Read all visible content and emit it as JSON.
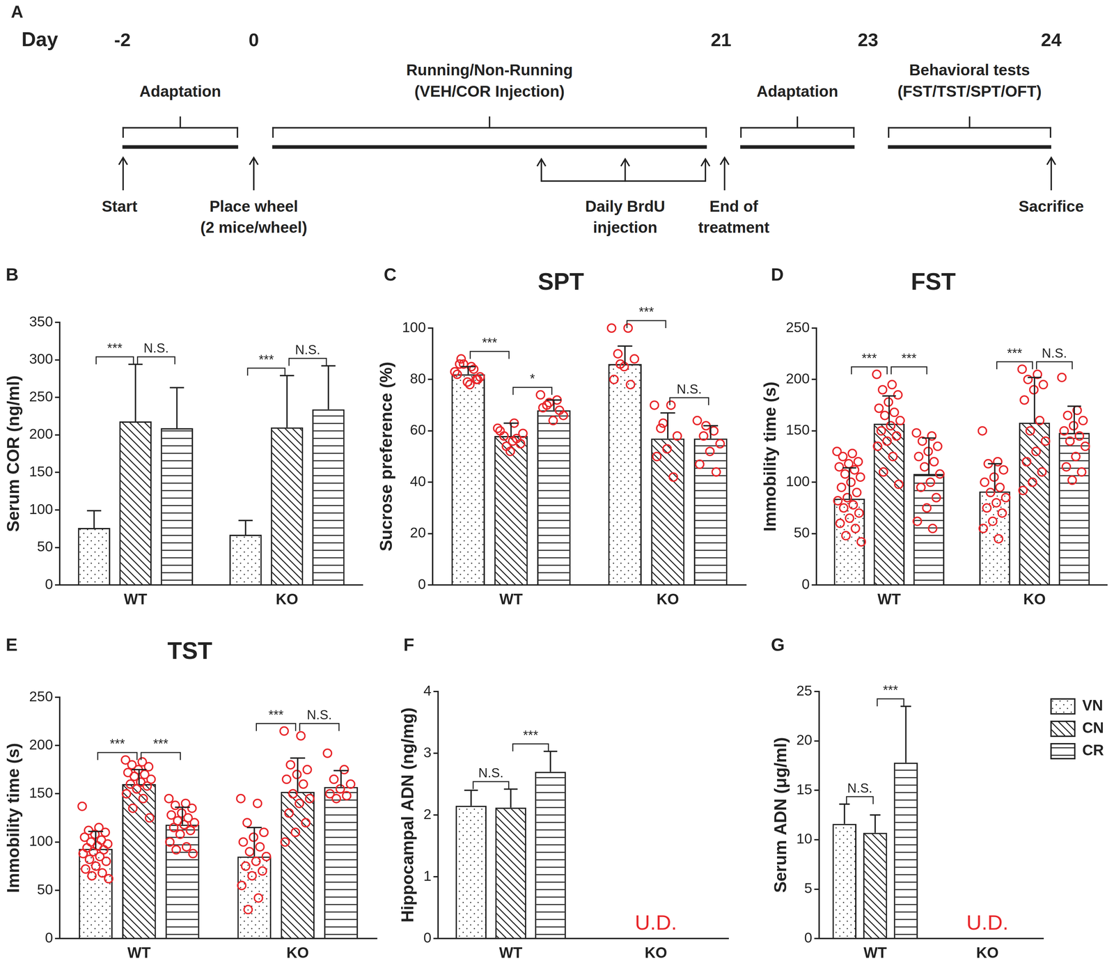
{
  "timeline": {
    "panel": "A",
    "day_label": "Day",
    "days": [
      -2,
      0,
      21,
      23,
      24
    ],
    "phases": [
      {
        "lines": [
          "Adaptation"
        ]
      },
      {
        "lines": [
          "Running/Non-Running",
          "(VEH/COR Injection)"
        ]
      },
      {
        "lines": [
          "Adaptation"
        ]
      },
      {
        "lines": [
          "Behavioral tests",
          "(FST/TST/SPT/OFT)"
        ]
      }
    ],
    "events": [
      {
        "lines": [
          "Start"
        ]
      },
      {
        "lines": [
          "Place wheel",
          "(2 mice/wheel)"
        ]
      },
      {
        "lines": [
          "Daily BrdU",
          "injection"
        ]
      },
      {
        "lines": [
          "End of",
          "treatment"
        ]
      },
      {
        "lines": [
          "Sacrifice"
        ]
      }
    ]
  },
  "chart_data": [
    {
      "panel": "B",
      "type": "bar",
      "y_label": "Serum COR (ng/ml)",
      "categories": [
        "WT",
        "KO"
      ],
      "ylim": [
        0,
        350
      ],
      "yticks": [
        0,
        50,
        100,
        150,
        200,
        250,
        300,
        350
      ],
      "grid": false,
      "series": [
        {
          "name": "VN",
          "values": [
            76,
            67
          ],
          "errors": [
            23,
            19
          ]
        },
        {
          "name": "CN",
          "values": [
            218,
            210
          ],
          "errors": [
            76,
            69
          ]
        },
        {
          "name": "CR",
          "values": [
            209,
            234
          ],
          "errors": [
            54,
            58
          ]
        }
      ],
      "significance": [
        {
          "category": "WT",
          "from": "VN",
          "to": "CN",
          "label": "***"
        },
        {
          "category": "WT",
          "from": "CN",
          "to": "CR",
          "label": "N.S."
        },
        {
          "category": "KO",
          "from": "VN",
          "to": "CN",
          "label": "***"
        },
        {
          "category": "KO",
          "from": "CN",
          "to": "CR",
          "label": "N.S."
        }
      ]
    },
    {
      "panel": "C",
      "type": "bar",
      "title": "SPT",
      "y_label": "Sucrose preference (%)",
      "categories": [
        "WT",
        "KO"
      ],
      "ylim": [
        0,
        100
      ],
      "yticks": [
        0,
        20,
        40,
        60,
        80,
        100
      ],
      "grid": false,
      "marker": "circle",
      "series": [
        {
          "name": "VN",
          "values": [
            82,
            86
          ],
          "errors": [
            3,
            7
          ],
          "points": [
            [
              83,
              85,
              88,
              80,
              79,
              82,
              84,
              86,
              81,
              78,
              86,
              80
            ],
            [
              100,
              100,
              90,
              88,
              85,
              80,
              78,
              86
            ]
          ]
        },
        {
          "name": "CN",
          "values": [
            58,
            57
          ],
          "errors": [
            5,
            10
          ],
          "points": [
            [
              61,
              63,
              58,
              55,
              52,
              60,
              57,
              54,
              59,
              56
            ],
            [
              70,
              70,
              61,
              58,
              53,
              50,
              42,
              63
            ]
          ]
        },
        {
          "name": "CR",
          "values": [
            68,
            57
          ],
          "errors": [
            4,
            5
          ],
          "points": [
            [
              74,
              72,
              70,
              66,
              64,
              69,
              68,
              71
            ],
            [
              64,
              60,
              58,
              55,
              52,
              47,
              44,
              62
            ]
          ]
        }
      ],
      "significance": [
        {
          "category": "WT",
          "from": "VN",
          "to": "CN",
          "label": "***"
        },
        {
          "category": "WT",
          "from": "CN",
          "to": "CR",
          "label": "*"
        },
        {
          "category": "KO",
          "from": "VN",
          "to": "CN",
          "label": "***"
        },
        {
          "category": "KO",
          "from": "CN",
          "to": "CR",
          "label": "N.S."
        }
      ]
    },
    {
      "panel": "D",
      "type": "bar",
      "title": "FST",
      "y_label": "Immobility time (s)",
      "categories": [
        "WT",
        "KO"
      ],
      "ylim": [
        0,
        250
      ],
      "yticks": [
        0,
        50,
        100,
        150,
        200,
        250
      ],
      "grid": false,
      "marker": "circle",
      "series": [
        {
          "name": "VN",
          "values": [
            84,
            91
          ],
          "errors": [
            30,
            27
          ],
          "points": [
            [
              130,
              128,
              125,
              120,
              118,
              115,
              112,
              108,
              105,
              100,
              95,
              90,
              85,
              82,
              78,
              75,
              70,
              65,
              60,
              55,
              48,
              42
            ],
            [
              150,
              120,
              118,
              112,
              105,
              100,
              95,
              90,
              85,
              80,
              75,
              70,
              62,
              55,
              45
            ]
          ]
        },
        {
          "name": "CN",
          "values": [
            157,
            158
          ],
          "errors": [
            27,
            44
          ],
          "points": [
            [
              205,
              195,
              190,
              185,
              178,
              172,
              168,
              165,
              160,
              155,
              150,
              145,
              140,
              135,
              125,
              110,
              98
            ],
            [
              210,
              205,
              200,
              195,
              190,
              180,
              160,
              150,
              140,
              130,
              120,
              110,
              100,
              92
            ]
          ]
        },
        {
          "name": "CR",
          "values": [
            108,
            148
          ],
          "errors": [
            35,
            26
          ],
          "points": [
            [
              148,
              145,
              140,
              135,
              130,
              125,
              120,
              115,
              108,
              100,
              95,
              85,
              75,
              62,
              55
            ],
            [
              202,
              170,
              165,
              160,
              155,
              150,
              145,
              140,
              135,
              125,
              115,
              110,
              102
            ]
          ]
        }
      ],
      "significance": [
        {
          "category": "WT",
          "from": "VN",
          "to": "CN",
          "label": "***"
        },
        {
          "category": "WT",
          "from": "CN",
          "to": "CR",
          "label": "***"
        },
        {
          "category": "KO",
          "from": "VN",
          "to": "CN",
          "label": "***"
        },
        {
          "category": "KO",
          "from": "CN",
          "to": "CR",
          "label": "N.S."
        }
      ]
    },
    {
      "panel": "E",
      "type": "bar",
      "title": "TST",
      "y_label": "Immobility time (s)",
      "categories": [
        "WT",
        "KO"
      ],
      "ylim": [
        0,
        250
      ],
      "yticks": [
        0,
        50,
        100,
        150,
        200,
        250
      ],
      "grid": false,
      "marker": "circle",
      "series": [
        {
          "name": "VN",
          "values": [
            93,
            85
          ],
          "errors": [
            18,
            30
          ],
          "points": [
            [
              137,
              115,
              112,
              110,
              108,
              105,
              102,
              100,
              98,
              96,
              94,
              92,
              90,
              88,
              85,
              82,
              80,
              75,
              72,
              68,
              65,
              62
            ],
            [
              145,
              140,
              120,
              110,
              105,
              100,
              95,
              90,
              85,
              80,
              75,
              70,
              65,
              55,
              42,
              30
            ]
          ]
        },
        {
          "name": "CN",
          "values": [
            160,
            152
          ],
          "errors": [
            15,
            35
          ],
          "points": [
            [
              185,
              183,
              180,
              178,
              175,
              172,
              170,
              168,
              165,
              162,
              160,
              158,
              155,
              150,
              145,
              135,
              125
            ],
            [
              215,
              210,
              180,
              175,
              170,
              165,
              160,
              150,
              145,
              140,
              130,
              120,
              110,
              100
            ]
          ]
        },
        {
          "name": "CR",
          "values": [
            118,
            157
          ],
          "errors": [
            18,
            17
          ],
          "points": [
            [
              145,
              140,
              138,
              135,
              130,
              128,
              125,
              122,
              120,
              118,
              115,
              112,
              108,
              100,
              95,
              92,
              88
            ],
            [
              192,
              175,
              165,
              160,
              155,
              150,
              148,
              145
            ]
          ]
        }
      ],
      "significance": [
        {
          "category": "WT",
          "from": "VN",
          "to": "CN",
          "label": "***"
        },
        {
          "category": "WT",
          "from": "CN",
          "to": "CR",
          "label": "***"
        },
        {
          "category": "KO",
          "from": "VN",
          "to": "CN",
          "label": "***"
        },
        {
          "category": "KO",
          "from": "CN",
          "to": "CR",
          "label": "N.S."
        }
      ]
    },
    {
      "panel": "F",
      "type": "bar",
      "y_label": "Hippocampal ADN (ng/mg)",
      "categories": [
        "WT",
        "KO"
      ],
      "ylim": [
        0,
        4
      ],
      "yticks": [
        0,
        1,
        2,
        3,
        4
      ],
      "grid": false,
      "series": [
        {
          "name": "VN",
          "values": [
            2.15,
            null
          ],
          "errors": [
            0.25,
            null
          ]
        },
        {
          "name": "CN",
          "values": [
            2.12,
            null
          ],
          "errors": [
            0.3,
            null
          ]
        },
        {
          "name": "CR",
          "values": [
            2.7,
            null
          ],
          "errors": [
            0.33,
            null
          ]
        }
      ],
      "significance": [
        {
          "category": "WT",
          "from": "VN",
          "to": "CN",
          "label": "N.S."
        },
        {
          "category": "WT",
          "from": "CN",
          "to": "CR",
          "label": "***"
        }
      ],
      "annotations": [
        {
          "category": "KO",
          "text": "U.D."
        }
      ]
    },
    {
      "panel": "G",
      "type": "bar",
      "y_label": "Serum ADN (μg/ml)",
      "categories": [
        "WT",
        "KO"
      ],
      "ylim": [
        0,
        25
      ],
      "yticks": [
        0,
        5,
        10,
        15,
        20,
        25
      ],
      "grid": false,
      "legend": "right",
      "series": [
        {
          "name": "VN",
          "values": [
            11.6,
            null
          ],
          "errors": [
            2.0,
            null
          ]
        },
        {
          "name": "CN",
          "values": [
            10.7,
            null
          ],
          "errors": [
            1.8,
            null
          ]
        },
        {
          "name": "CR",
          "values": [
            17.8,
            null
          ],
          "errors": [
            5.7,
            null
          ]
        }
      ],
      "significance": [
        {
          "category": "WT",
          "from": "VN",
          "to": "CN",
          "label": "N.S."
        },
        {
          "category": "WT",
          "from": "CN",
          "to": "CR",
          "label": "***"
        }
      ],
      "annotations": [
        {
          "category": "KO",
          "text": "U.D."
        }
      ]
    }
  ]
}
